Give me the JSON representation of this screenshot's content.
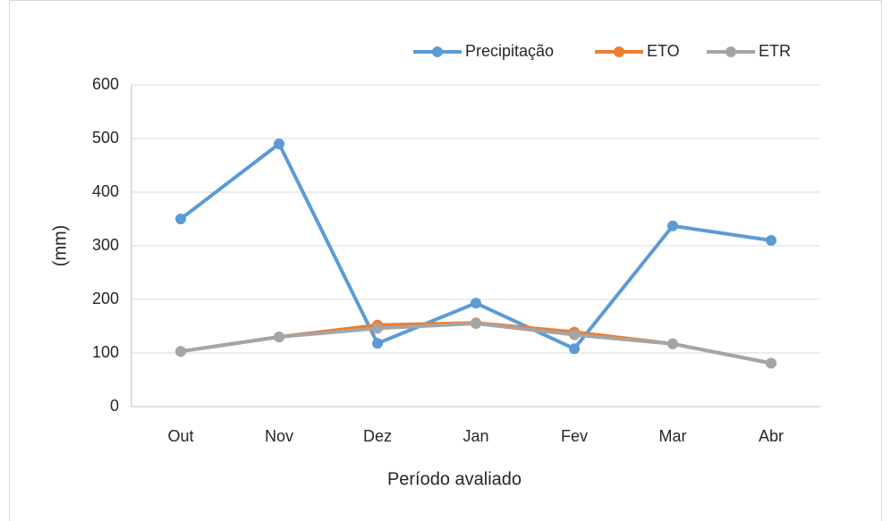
{
  "chart_data": {
    "type": "line",
    "x_label": "Período avaliado",
    "y_label": "(mm)",
    "categories": [
      "Out",
      "Nov",
      "Dez",
      "Jan",
      "Fev",
      "Mar",
      "Abr"
    ],
    "series": [
      {
        "name": "Precipitação",
        "color": "#5b9bd5",
        "values": [
          350,
          490,
          118,
          193,
          108,
          337,
          310
        ]
      },
      {
        "name": "ETO",
        "color": "#ed7d31",
        "values": [
          103,
          130,
          152,
          156,
          139,
          117,
          81
        ]
      },
      {
        "name": "ETR",
        "color": "#a5a5a5",
        "values": [
          103,
          130,
          146,
          155,
          134,
          117,
          81
        ]
      }
    ],
    "ylim": [
      0,
      600
    ],
    "yticks": [
      0,
      100,
      200,
      300,
      400,
      500,
      600
    ],
    "grid": true,
    "legend": "top-right"
  }
}
